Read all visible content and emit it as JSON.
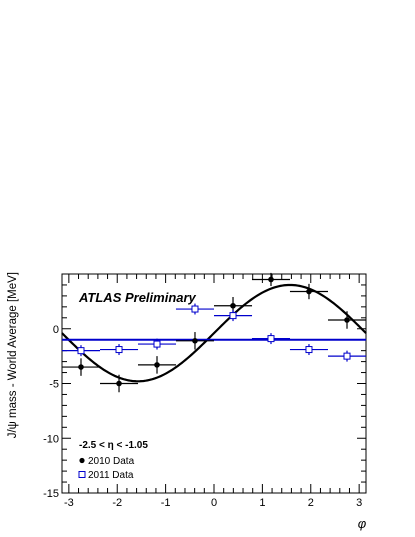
{
  "chart_data": {
    "type": "scatter",
    "title": "",
    "xlabel": "φ",
    "ylabel": "J/ψ mass - World Average [MeV]",
    "xlim": [
      -3.14159,
      3.14159
    ],
    "ylim": [
      -15,
      5
    ],
    "xticks": [
      -3,
      -2,
      -1,
      0,
      1,
      2,
      3
    ],
    "yticks": [
      -15,
      -10,
      -5,
      0
    ],
    "xtick_labels": [
      "-3",
      "-2",
      "-1",
      "0",
      "1",
      "2",
      "3"
    ],
    "ytick_labels": [
      "-15",
      "-10",
      "-5",
      "0"
    ],
    "annotations": {
      "experiment": "ATLAS Preliminary",
      "selection": "-2.5 < η < -1.05"
    },
    "legend": {
      "position": "bottom-left",
      "entries": [
        "2010 Data",
        "2011 Data"
      ]
    },
    "colors": {
      "series_2010": "#000000",
      "series_2011": "#0000cc",
      "fit_2010": "#000000",
      "fit_2011": "#0000cc"
    },
    "series": [
      {
        "name": "2010 Data",
        "marker": "filled-circle",
        "points": [
          {
            "x": -2.749,
            "y": -3.5,
            "xerr": 0.393,
            "yerr": 0.8
          },
          {
            "x": -1.963,
            "y": -5.0,
            "xerr": 0.393,
            "yerr": 0.8
          },
          {
            "x": -1.178,
            "y": -3.3,
            "xerr": 0.393,
            "yerr": 0.8
          },
          {
            "x": -0.393,
            "y": -1.1,
            "xerr": 0.393,
            "yerr": 0.8
          },
          {
            "x": 0.393,
            "y": 2.1,
            "xerr": 0.393,
            "yerr": 0.8
          },
          {
            "x": 1.178,
            "y": 4.5,
            "xerr": 0.393,
            "yerr": 0.6
          },
          {
            "x": 1.963,
            "y": 3.4,
            "xerr": 0.393,
            "yerr": 0.7
          },
          {
            "x": 2.749,
            "y": 0.8,
            "xerr": 0.393,
            "yerr": 0.8
          }
        ]
      },
      {
        "name": "2011 Data",
        "marker": "open-square",
        "points": [
          {
            "x": -2.749,
            "y": -2.0,
            "xerr": 0.393,
            "yerr": 0.5
          },
          {
            "x": -1.963,
            "y": -1.9,
            "xerr": 0.393,
            "yerr": 0.5
          },
          {
            "x": -1.178,
            "y": -1.4,
            "xerr": 0.393,
            "yerr": 0.5
          },
          {
            "x": -0.393,
            "y": 1.8,
            "xerr": 0.393,
            "yerr": 0.5
          },
          {
            "x": 0.393,
            "y": 1.2,
            "xerr": 0.393,
            "yerr": 0.5
          },
          {
            "x": 1.178,
            "y": -0.9,
            "xerr": 0.393,
            "yerr": 0.5
          },
          {
            "x": 1.963,
            "y": -1.9,
            "xerr": 0.393,
            "yerr": 0.5
          },
          {
            "x": 2.749,
            "y": -2.5,
            "xerr": 0.393,
            "yerr": 0.5
          }
        ]
      }
    ],
    "fits": [
      {
        "series": "2010 Data",
        "function": "sine",
        "offset": -0.4,
        "amplitude": 4.4,
        "phase": 0.0
      },
      {
        "series": "2011 Data",
        "function": "constant",
        "offset": -1.0
      }
    ]
  }
}
